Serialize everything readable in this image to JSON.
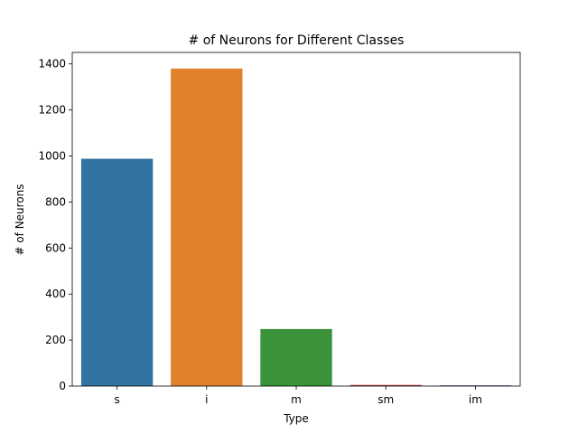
{
  "chart_data": {
    "type": "bar",
    "title": "# of Neurons for Different Classes",
    "xlabel": "Type",
    "ylabel": "# of Neurons",
    "categories": [
      "s",
      "i",
      "m",
      "sm",
      "im"
    ],
    "values": [
      988,
      1380,
      248,
      5,
      3
    ],
    "colors": [
      "#3274a1",
      "#e1812c",
      "#3a923a",
      "#c03d3e",
      "#3b4ba8"
    ],
    "ylim": [
      0,
      1450
    ],
    "yticks": [
      0,
      200,
      400,
      600,
      800,
      1000,
      1200,
      1400
    ],
    "grid": false,
    "legend": "none"
  }
}
